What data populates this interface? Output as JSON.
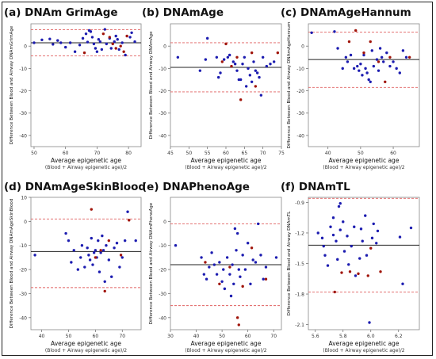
{
  "colors": {
    "point_blue": "#1c1cb0",
    "point_red": "#a0140a",
    "mean_line": "#222222",
    "loa_line": "#e06060",
    "axis_box": "#888888"
  },
  "chart_data": [
    {
      "type": "scatter",
      "title": "(a) DNAm GrimAge",
      "xlabel": "Average epigenetic age",
      "xlabel2": "(Blood + Airway epigenetic age)/2",
      "ylabel": "Difference Between Blood and Airway DNAmGrimAge",
      "xlim": [
        49,
        84
      ],
      "ylim": [
        -45,
        10
      ],
      "xticks": [
        50,
        60,
        70,
        80
      ],
      "yticks": [
        0,
        -10,
        -20,
        -30,
        -40
      ],
      "mean": 1.5,
      "upper_loa": 7.3,
      "lower_loa": -4.4,
      "blue": [
        [
          50,
          1.5
        ],
        [
          52.5,
          2.8
        ],
        [
          55,
          3.2
        ],
        [
          56,
          0.8
        ],
        [
          57.5,
          2.5
        ],
        [
          58.5,
          1.5
        ],
        [
          60,
          -0.5
        ],
        [
          61.5,
          1.5
        ],
        [
          63,
          -2.5
        ],
        [
          64.5,
          0.5
        ],
        [
          65.5,
          3.5
        ],
        [
          66.5,
          5.5
        ],
        [
          67,
          1.8
        ],
        [
          67.5,
          7
        ],
        [
          68,
          6.5
        ],
        [
          68.5,
          4
        ],
        [
          69,
          1
        ],
        [
          69.5,
          -1
        ],
        [
          70,
          -2.5
        ],
        [
          70.5,
          3
        ],
        [
          71,
          2
        ],
        [
          71.5,
          -1.5
        ],
        [
          72.5,
          7.5
        ],
        [
          73,
          1
        ],
        [
          74,
          3.5
        ],
        [
          74.5,
          -1
        ],
        [
          75.5,
          2
        ],
        [
          76,
          4.5
        ],
        [
          76.5,
          3
        ],
        [
          77,
          -1.5
        ],
        [
          78,
          1.5
        ],
        [
          79,
          -4
        ],
        [
          80.5,
          4
        ],
        [
          81,
          6
        ],
        [
          82,
          2
        ]
      ],
      "red": [
        [
          66,
          -3
        ],
        [
          72,
          5.5
        ],
        [
          74,
          4
        ],
        [
          75,
          1
        ],
        [
          76,
          -1
        ],
        [
          77.5,
          0
        ],
        [
          78.5,
          -2.5
        ],
        [
          79.5,
          4.5
        ]
      ]
    },
    {
      "type": "scatter",
      "title": "(b) DNAmAge",
      "xlabel": "Average epigenetic age",
      "xlabel2": "(Blood + Airway epigenetic age)/2",
      "ylabel": "Difference Between Blood and Airway DNAmAge",
      "xlim": [
        45,
        75
      ],
      "ylim": [
        -45,
        10
      ],
      "xticks": [
        45,
        50,
        55,
        60,
        65,
        70,
        75
      ],
      "yticks": [
        0,
        -10,
        -20,
        -30,
        -40
      ],
      "mean": -9.5,
      "upper_loa": 1.5,
      "lower_loa": -20.5,
      "blue": [
        [
          47,
          -5
        ],
        [
          53,
          -11
        ],
        [
          54.5,
          -6
        ],
        [
          55,
          3.5
        ],
        [
          57.5,
          -5
        ],
        [
          58,
          -14
        ],
        [
          58.5,
          -12
        ],
        [
          59.5,
          -6
        ],
        [
          60.5,
          -5
        ],
        [
          61,
          -4
        ],
        [
          62,
          -7
        ],
        [
          62.5,
          -8
        ],
        [
          63,
          -11
        ],
        [
          63.5,
          -15
        ],
        [
          64,
          -15
        ],
        [
          64.5,
          -8
        ],
        [
          65,
          -5
        ],
        [
          65.5,
          -18
        ],
        [
          66,
          -10
        ],
        [
          66.5,
          -13
        ],
        [
          67,
          -16
        ],
        [
          67.5,
          -7
        ],
        [
          68,
          -11
        ],
        [
          68.5,
          -12
        ],
        [
          69,
          -14
        ],
        [
          69.5,
          -22
        ],
        [
          70,
          -5
        ],
        [
          71,
          -9
        ],
        [
          72,
          -8
        ],
        [
          73,
          -7
        ]
      ],
      "red": [
        [
          59,
          -7
        ],
        [
          60,
          1
        ],
        [
          61.5,
          -9
        ],
        [
          63,
          -5
        ],
        [
          64,
          -24
        ],
        [
          67,
          -3
        ],
        [
          68,
          -18
        ],
        [
          74,
          -3
        ]
      ]
    },
    {
      "type": "scatter",
      "title": "(c) DNAmAgeHannum",
      "xlabel": "Average epigenetic age",
      "xlabel2": "(Blood + Airway epigenetic age)/2",
      "ylabel": "Difference Between Blood and Airway DNAmAgeHannum",
      "xlim": [
        34,
        68
      ],
      "ylim": [
        -45,
        10
      ],
      "xticks": [
        40,
        50,
        60
      ],
      "yticks": [
        0,
        -10,
        -20,
        -30,
        -40
      ],
      "mean": -6,
      "upper_loa": 6.3,
      "lower_loa": -18.5,
      "blue": [
        [
          35,
          6
        ],
        [
          42,
          6.5
        ],
        [
          43,
          -1
        ],
        [
          44.5,
          -10
        ],
        [
          45.5,
          -5
        ],
        [
          46,
          -7
        ],
        [
          47,
          -4
        ],
        [
          48,
          -10
        ],
        [
          49,
          -9
        ],
        [
          49.5,
          -11
        ],
        [
          50,
          -8
        ],
        [
          50.5,
          -13
        ],
        [
          51,
          -4
        ],
        [
          51.5,
          -10
        ],
        [
          52,
          -12
        ],
        [
          52.5,
          -15
        ],
        [
          53,
          -16
        ],
        [
          53.5,
          -2
        ],
        [
          54,
          -9
        ],
        [
          55,
          -6
        ],
        [
          55.5,
          -11
        ],
        [
          56,
          -1
        ],
        [
          56.5,
          -5
        ],
        [
          57,
          -7
        ],
        [
          58,
          -3
        ],
        [
          59,
          -9
        ],
        [
          60,
          -7
        ],
        [
          61,
          -10
        ],
        [
          62,
          -12
        ],
        [
          63,
          -2
        ],
        [
          64,
          -5
        ]
      ],
      "red": [
        [
          46.5,
          2
        ],
        [
          48.5,
          7
        ],
        [
          51,
          -3
        ],
        [
          53,
          2
        ],
        [
          55.5,
          -7
        ],
        [
          57.5,
          -16
        ],
        [
          59,
          -5
        ],
        [
          65,
          -5
        ]
      ]
    },
    {
      "type": "scatter",
      "title": "(d) DNAmAgeSkinBlood",
      "xlabel": "Average epigenetic age",
      "xlabel2": "(Blood + Airway epigenetic age)/2",
      "ylabel": "Difference Between Blood and Airway DNAmAgeSkinBlood",
      "xlim": [
        36,
        77
      ],
      "ylim": [
        -45,
        10
      ],
      "xticks": [
        40,
        50,
        60,
        70
      ],
      "yticks": [
        10,
        0,
        -10,
        -20,
        -30,
        -40
      ],
      "mean": -12.5,
      "upper_loa": 1,
      "lower_loa": -27.5,
      "blue": [
        [
          37.5,
          -14
        ],
        [
          49,
          -5
        ],
        [
          50,
          -8
        ],
        [
          51,
          -17
        ],
        [
          52,
          -12
        ],
        [
          53.5,
          -20
        ],
        [
          54.5,
          -15
        ],
        [
          55,
          -10
        ],
        [
          56,
          -19
        ],
        [
          57,
          -11
        ],
        [
          57.5,
          -14
        ],
        [
          58,
          -16
        ],
        [
          58.5,
          -7
        ],
        [
          59,
          -18
        ],
        [
          59.5,
          -13
        ],
        [
          60,
          -12
        ],
        [
          60.5,
          -15
        ],
        [
          61,
          -8
        ],
        [
          61.5,
          -21
        ],
        [
          62,
          -13
        ],
        [
          62.5,
          -6
        ],
        [
          63,
          -12
        ],
        [
          63.5,
          -25
        ],
        [
          64,
          -10
        ],
        [
          65,
          -16
        ],
        [
          66,
          -23
        ],
        [
          67,
          -11
        ],
        [
          68,
          -9
        ],
        [
          69,
          -19
        ],
        [
          70,
          -15
        ],
        [
          71,
          -8
        ],
        [
          72,
          4
        ],
        [
          75,
          -8
        ]
      ],
      "red": [
        [
          58.5,
          5
        ],
        [
          60,
          -15
        ],
        [
          62,
          -12
        ],
        [
          63.5,
          -29
        ],
        [
          65,
          -8
        ],
        [
          69.5,
          -14
        ],
        [
          72.5,
          0.5
        ]
      ]
    },
    {
      "type": "scatter",
      "title": "(e) DNAPhenoAge",
      "xlabel": "Average epigenetic age",
      "xlabel2": "(Blood + Airway epigenetic age)/2",
      "ylabel": "Difference Between Blood and Airway DNAmPhenoAge",
      "xlim": [
        30,
        73
      ],
      "ylim": [
        -45,
        10
      ],
      "xticks": [
        30,
        40,
        50,
        60,
        70
      ],
      "yticks": [
        0,
        -10,
        -20,
        -30,
        -40
      ],
      "mean": -18,
      "upper_loa": -1,
      "lower_loa": -35,
      "blue": [
        [
          32,
          -10
        ],
        [
          42,
          -15
        ],
        [
          43,
          -22
        ],
        [
          44,
          -24
        ],
        [
          45,
          -19
        ],
        [
          46,
          -13
        ],
        [
          47,
          -18
        ],
        [
          48,
          -22
        ],
        [
          49,
          -17
        ],
        [
          50,
          -25
        ],
        [
          50.5,
          -20
        ],
        [
          51,
          -28
        ],
        [
          52,
          -15
        ],
        [
          53,
          -22
        ],
        [
          53.5,
          -31
        ],
        [
          54,
          -18
        ],
        [
          54.5,
          -26
        ],
        [
          55,
          -3
        ],
        [
          55.5,
          -12
        ],
        [
          56,
          -5
        ],
        [
          56.5,
          -20
        ],
        [
          57,
          -23
        ],
        [
          58,
          -14
        ],
        [
          59,
          -20
        ],
        [
          60,
          -9
        ],
        [
          61,
          -26
        ],
        [
          62,
          -16
        ],
        [
          63,
          -17
        ],
        [
          64,
          -1
        ],
        [
          65,
          -14
        ],
        [
          66,
          -24
        ],
        [
          67,
          -19
        ],
        [
          71,
          -15
        ]
      ],
      "red": [
        [
          43.5,
          -17
        ],
        [
          49,
          -26
        ],
        [
          53,
          -19
        ],
        [
          56,
          -40
        ],
        [
          56.5,
          -43
        ],
        [
          58,
          -27
        ],
        [
          61.5,
          -11
        ],
        [
          67,
          -24
        ]
      ]
    },
    {
      "type": "scatter",
      "title": "(f) DNAmTL",
      "xlabel": "Average epigenetic age",
      "xlabel2": "(Blood + Airway epigenetic age)/2",
      "ylabel": "Difference Between Blood and Airway DNAmTL",
      "xlim": [
        5.55,
        6.35
      ],
      "ylim": [
        -2.15,
        -0.85
      ],
      "xticks": [
        5.6,
        5.8,
        6.0,
        6.2
      ],
      "yticks": [
        -0.9,
        -1.2,
        -1.5,
        -1.8,
        -2.1
      ],
      "tick_decimals": 1,
      "mean": -1.32,
      "upper_loa": -0.86,
      "lower_loa": -1.78,
      "blue": [
        [
          5.62,
          -1.2
        ],
        [
          5.65,
          -1.25
        ],
        [
          5.66,
          -1.33
        ],
        [
          5.67,
          -1.42
        ],
        [
          5.69,
          -1.52
        ],
        [
          5.71,
          -1.14
        ],
        [
          5.73,
          -1.22
        ],
        [
          5.73,
          -1.05
        ],
        [
          5.75,
          -1.28
        ],
        [
          5.76,
          -1.46
        ],
        [
          5.77,
          -0.94
        ],
        [
          5.78,
          -0.91
        ],
        [
          5.78,
          -1.17
        ],
        [
          5.8,
          -1.09
        ],
        [
          5.81,
          -1.38
        ],
        [
          5.83,
          -1.23
        ],
        [
          5.84,
          -1.51
        ],
        [
          5.86,
          -1.33
        ],
        [
          5.88,
          -1.14
        ],
        [
          5.89,
          -1.62
        ],
        [
          5.92,
          -1.45
        ],
        [
          5.93,
          -1.16
        ],
        [
          5.94,
          -1.28
        ],
        [
          5.96,
          -1.03
        ],
        [
          5.97,
          -1.42
        ],
        [
          5.99,
          -2.08
        ],
        [
          6.01,
          -1.25
        ],
        [
          6.02,
          -1.11
        ],
        [
          6.04,
          -1.3
        ],
        [
          6.05,
          -1.18
        ],
        [
          6.21,
          -1.24
        ],
        [
          6.23,
          -1.7
        ],
        [
          6.29,
          -1.15
        ]
      ],
      "red": [
        [
          5.74,
          -1.78
        ],
        [
          5.79,
          -1.59
        ],
        [
          5.85,
          -1.58
        ],
        [
          5.91,
          -1.6
        ],
        [
          5.98,
          -1.62
        ],
        [
          6.0,
          -1.35
        ],
        [
          6.07,
          -1.58
        ]
      ]
    }
  ]
}
